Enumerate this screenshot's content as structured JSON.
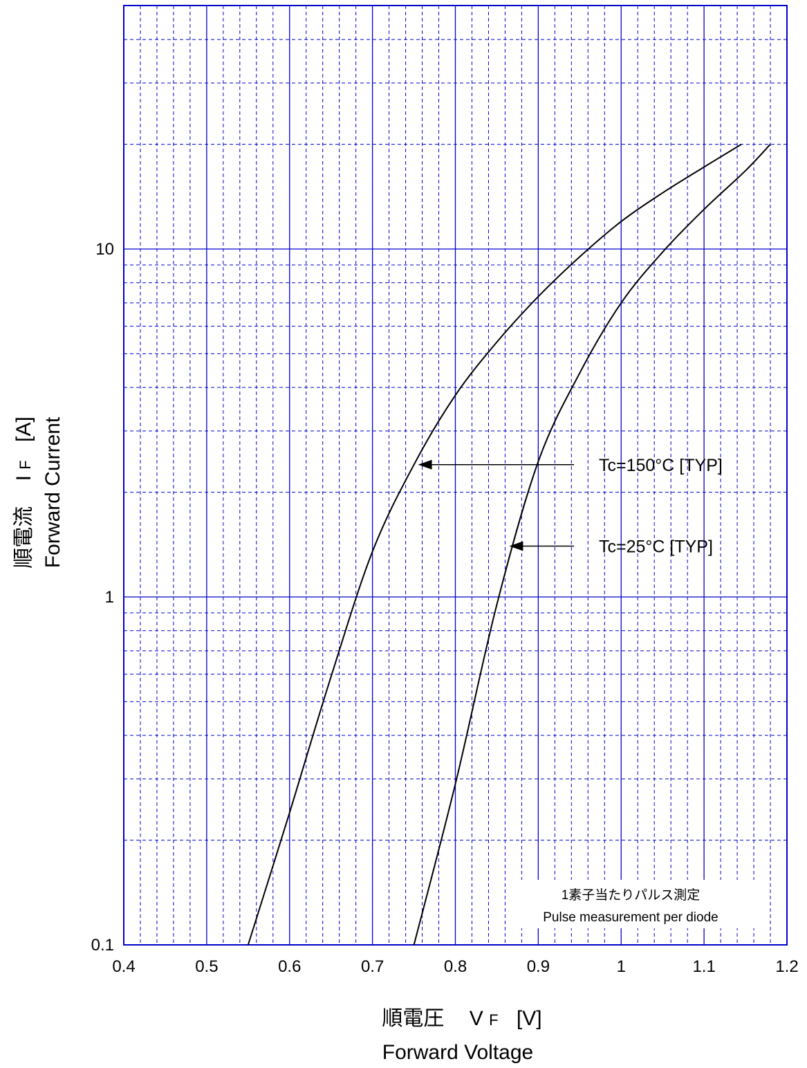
{
  "chart_data": {
    "type": "line",
    "title": "",
    "xlabel": {
      "jp": "順電圧",
      "symbol_main": "V",
      "symbol_sub": "F",
      "unit": "[V]",
      "en": "Forward Voltage"
    },
    "ylabel": {
      "jp": "順電流",
      "symbol_main": "I",
      "symbol_sub": "F",
      "unit": "[A]",
      "en": "Forward Current"
    },
    "xlim": [
      0.4,
      1.2
    ],
    "ylim": [
      0.1,
      50
    ],
    "yscale": "log",
    "grid": true,
    "x_ticks": [
      "0.4",
      "0.5",
      "0.6",
      "0.7",
      "0.8",
      "0.9",
      "1",
      "1.1",
      "1.2"
    ],
    "y_ticks": [
      "0.1",
      "1",
      "10"
    ],
    "series": [
      {
        "name": "Tc=150°C [TYP]",
        "x": [
          0.55,
          0.6,
          0.65,
          0.7,
          0.75,
          0.8,
          0.85,
          0.9,
          0.95,
          1.0,
          1.05,
          1.1,
          1.145
        ],
        "y": [
          0.1,
          0.24,
          0.59,
          1.35,
          2.4,
          3.8,
          5.4,
          7.3,
          9.5,
          12.0,
          14.5,
          17.2,
          20.0
        ]
      },
      {
        "name": "Tc=25°C [TYP]",
        "x": [
          0.75,
          0.8,
          0.85,
          0.9,
          0.95,
          1.0,
          1.05,
          1.1,
          1.15,
          1.18
        ],
        "y": [
          0.1,
          0.29,
          0.95,
          2.45,
          4.4,
          7.0,
          9.8,
          13.0,
          16.8,
          20.0
        ]
      }
    ],
    "annotations": [
      {
        "text": "Tc=150°C [TYP]",
        "target_series": 0,
        "x": 0.755,
        "y": 2.4
      },
      {
        "text": "Tc=25°C [TYP]",
        "target_series": 1,
        "x": 0.865,
        "y": 1.4
      }
    ],
    "notes": [
      "1素子当たりパルス測定",
      "Pulse measurement per diode"
    ],
    "colors": {
      "grid": "#0000cc",
      "curve": "#000000",
      "text": "#000000"
    }
  }
}
